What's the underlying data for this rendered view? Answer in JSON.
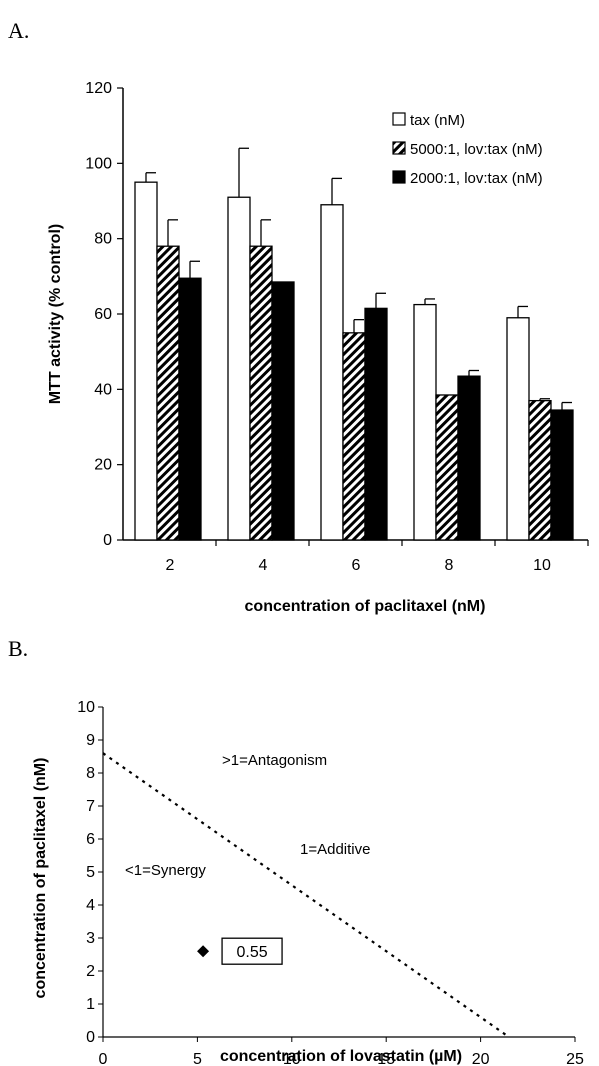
{
  "panel_a_label": "A.",
  "panel_b_label": "B.",
  "chart_data": [
    {
      "type": "bar",
      "panel": "A.",
      "categories": [
        "2",
        "4",
        "6",
        "8",
        "10"
      ],
      "series": [
        {
          "name": "tax (nM)",
          "values": [
            95,
            91,
            89,
            62.5,
            59
          ],
          "errors": [
            2.5,
            13,
            7,
            1.5,
            3
          ],
          "pattern": "open"
        },
        {
          "name": "5000:1, lov:tax (nM)",
          "values": [
            78,
            78,
            55,
            38.5,
            37
          ],
          "errors": [
            7,
            7,
            3.5,
            0,
            0.5
          ],
          "pattern": "hatched"
        },
        {
          "name": "2000:1, lov:tax (nM)",
          "values": [
            69.5,
            68.5,
            61.5,
            43.5,
            34.5
          ],
          "errors": [
            4.5,
            0,
            4,
            1.5,
            2
          ],
          "pattern": "solid"
        }
      ],
      "yticks": [
        "0",
        "20",
        "40",
        "60",
        "80",
        "100",
        "120"
      ],
      "ylim": [
        0,
        120
      ],
      "xlabel": "concentration of paclitaxel (nM)",
      "ylabel": "MTT activity (% control)",
      "legend_position": "top-right"
    },
    {
      "type": "scatter",
      "panel": "B.",
      "points": [
        {
          "x": 5.3,
          "y": 2.6,
          "label": "0.55"
        }
      ],
      "additivity_line": {
        "x": [
          0,
          21.5
        ],
        "y": [
          8.6,
          0
        ]
      },
      "xticks": [
        "0",
        "5",
        "10",
        "15",
        "20",
        "25"
      ],
      "yticks": [
        "0",
        "1",
        "2",
        "3",
        "4",
        "5",
        "6",
        "7",
        "8",
        "9",
        "10"
      ],
      "xlim": [
        0,
        25
      ],
      "ylim": [
        0,
        10
      ],
      "xlabel": "concentration of lovastatin (µM)",
      "ylabel": "concentration of paclitaxel (nM)",
      "annotations": [
        ">1=Antagonism",
        "1=Additive",
        "<1=Synergy"
      ]
    }
  ]
}
